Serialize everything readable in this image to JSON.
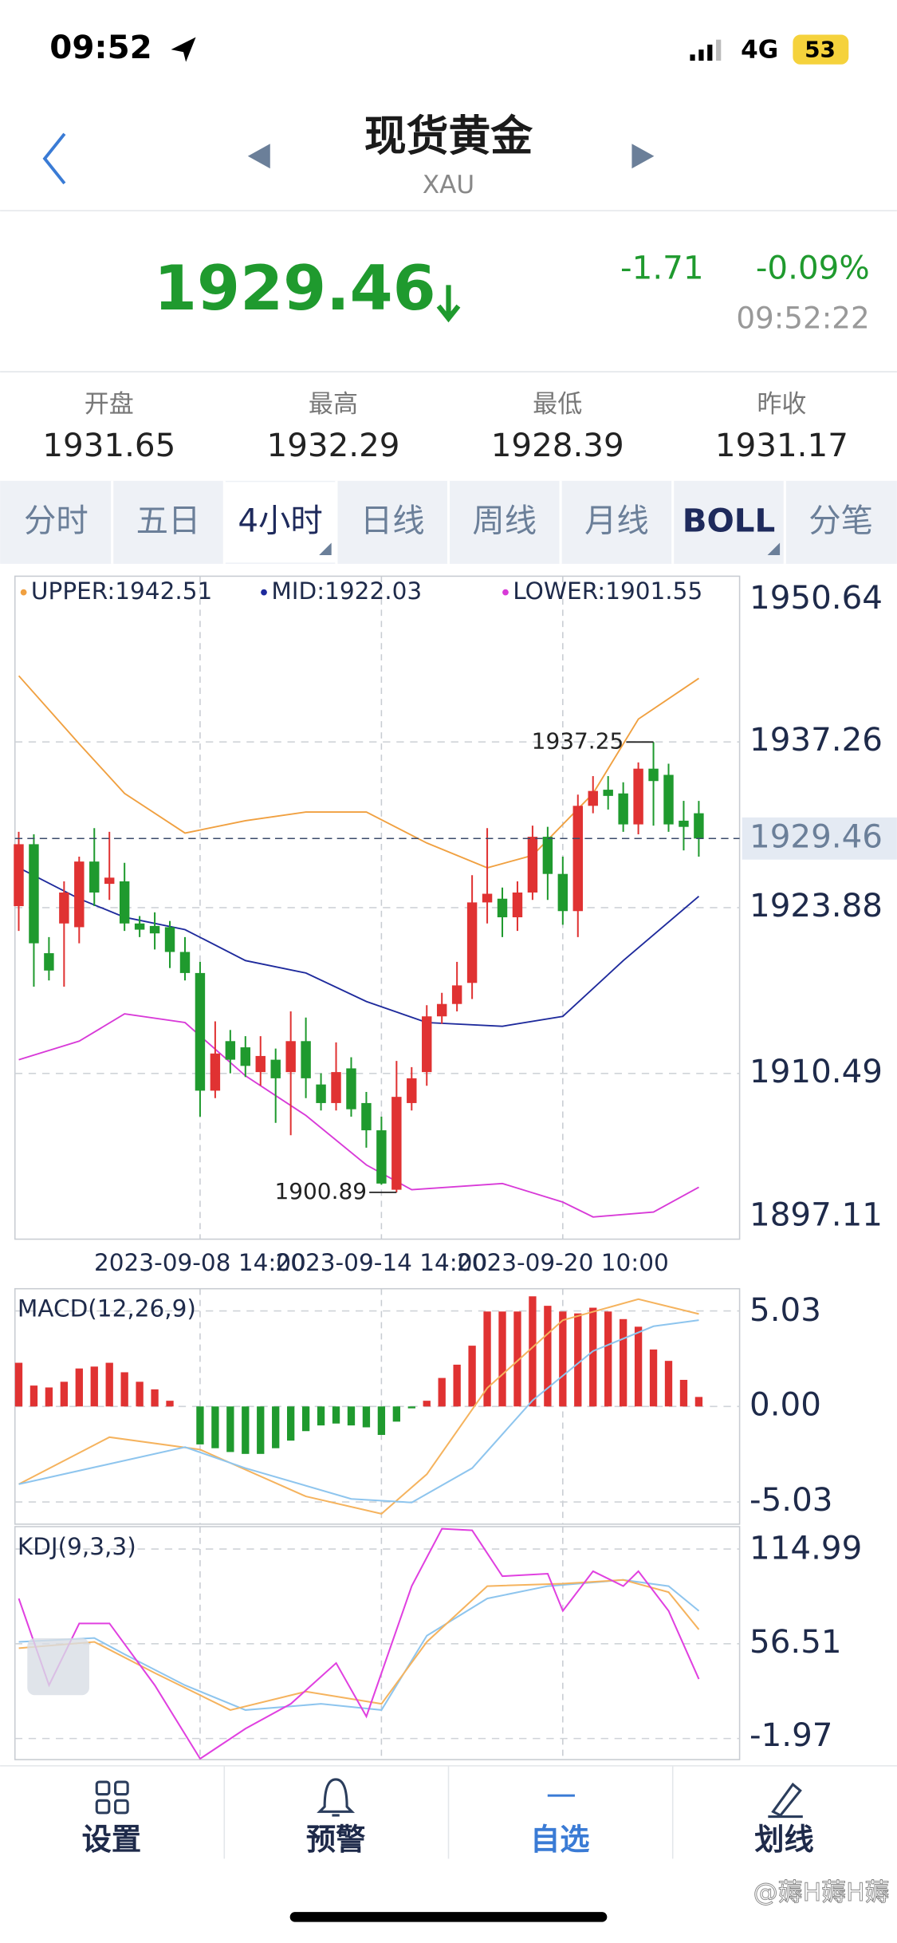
{
  "status": {
    "time": "09:52",
    "network": "4G",
    "battery": "53"
  },
  "header": {
    "title": "现货黄金",
    "subtitle": "XAU"
  },
  "quote": {
    "price": "1929.46",
    "change": "-1.71",
    "change_pct": "-0.09%",
    "time": "09:52:22"
  },
  "stats": [
    {
      "label": "开盘",
      "value": "1931.65"
    },
    {
      "label": "最高",
      "value": "1932.29"
    },
    {
      "label": "最低",
      "value": "1928.39"
    },
    {
      "label": "昨收",
      "value": "1931.17"
    }
  ],
  "tabs": [
    "分时",
    "五日",
    "4小时",
    "日线",
    "周线",
    "月线",
    "BOLL",
    "分笔"
  ],
  "active_tab": 2,
  "chart_data": [
    {
      "type": "candlestick",
      "up_color": "#e03232",
      "down_color": "#1f9a2e",
      "open": [
        1924.0,
        1929.0,
        1920.2,
        1922.6,
        1922.3,
        1927.6,
        1925.8,
        1926.0,
        1922.6,
        1922.4,
        1922.3,
        1920.3,
        1918.6,
        1909.1,
        1913.1,
        1912.6,
        1910.6,
        1911.6,
        1910.6,
        1913.1,
        1909.6,
        1908.1,
        1910.9,
        1908.1,
        1905.9,
        1901.1,
        1908.1,
        1910.6,
        1915.1,
        1916.1,
        1917.8,
        1924.3,
        1924.6,
        1923.1,
        1925.1,
        1929.6,
        1926.6,
        1923.6,
        1932.1,
        1933.4,
        1933.1,
        1930.6,
        1935.1,
        1934.6,
        1930.9,
        1931.5
      ],
      "high": [
        1930.0,
        1929.8,
        1921.5,
        1926.0,
        1928.0,
        1930.3,
        1930.0,
        1927.5,
        1923.2,
        1923.5,
        1922.8,
        1921.5,
        1919.5,
        1914.7,
        1914.0,
        1913.5,
        1913.5,
        1912.5,
        1915.5,
        1915.0,
        1910.5,
        1913.0,
        1911.8,
        1909.0,
        1907.0,
        1911.5,
        1911.0,
        1916.0,
        1917.0,
        1919.5,
        1926.5,
        1930.3,
        1925.5,
        1926.0,
        1930.5,
        1930.4,
        1928.0,
        1933.0,
        1934.5,
        1934.5,
        1934.0,
        1935.6,
        1937.25,
        1935.5,
        1932.5,
        1932.5
      ],
      "low": [
        1922.0,
        1917.5,
        1918.0,
        1917.5,
        1921.0,
        1924.0,
        1924.5,
        1922.0,
        1921.5,
        1920.5,
        1919.0,
        1918.0,
        1907.0,
        1908.5,
        1910.5,
        1910.2,
        1909.5,
        1906.5,
        1905.5,
        1908.5,
        1907.5,
        1907.5,
        1907.0,
        1904.5,
        1901.5,
        1900.89,
        1907.5,
        1909.5,
        1914.5,
        1915.5,
        1916.5,
        1922.6,
        1921.5,
        1922.0,
        1924.5,
        1924.5,
        1922.5,
        1921.5,
        1931.5,
        1931.8,
        1930.0,
        1929.8,
        1930.5,
        1930.0,
        1928.5,
        1928.0
      ],
      "close": [
        1929.0,
        1921.0,
        1918.8,
        1925.1,
        1927.6,
        1925.1,
        1926.3,
        1922.6,
        1922.1,
        1921.8,
        1920.3,
        1918.6,
        1909.1,
        1912.1,
        1911.6,
        1911.1,
        1911.9,
        1910.1,
        1913.1,
        1910.1,
        1908.1,
        1910.6,
        1907.6,
        1905.9,
        1901.6,
        1908.6,
        1910.1,
        1915.1,
        1916.1,
        1917.6,
        1924.3,
        1925.0,
        1923.1,
        1925.1,
        1929.6,
        1926.6,
        1923.6,
        1932.1,
        1933.3,
        1932.9,
        1930.6,
        1935.1,
        1934.1,
        1930.6,
        1930.4,
        1929.46
      ],
      "bands": [
        {
          "name": "UPPER:1942.51",
          "color": "#f0a040",
          "x": [
            0,
            4,
            7,
            11,
            15,
            19,
            23,
            27,
            31,
            34,
            38,
            41,
            45
          ],
          "values": [
            1942.6,
            1937.1,
            1933.1,
            1929.9,
            1930.9,
            1931.6,
            1931.6,
            1929.1,
            1927.1,
            1928.1,
            1933.1,
            1939.1,
            1942.4
          ]
        },
        {
          "name": "MID:1922.03",
          "color": "#1e2a9c",
          "x": [
            0,
            4,
            7,
            11,
            15,
            19,
            23,
            27,
            32,
            36,
            40,
            45
          ],
          "values": [
            1927.1,
            1924.6,
            1923.1,
            1922.1,
            1919.6,
            1918.6,
            1916.3,
            1914.6,
            1914.3,
            1915.1,
            1919.6,
            1924.8
          ]
        },
        {
          "name": "LOWER:1901.55",
          "color": "#d83ad8",
          "x": [
            0,
            4,
            7,
            11,
            15,
            19,
            23,
            26,
            32,
            36,
            38,
            42,
            45
          ],
          "values": [
            1911.6,
            1913.1,
            1915.3,
            1914.6,
            1910.3,
            1907.1,
            1903.1,
            1901.1,
            1901.6,
            1900.1,
            1898.9,
            1899.3,
            1901.3
          ]
        }
      ],
      "last_price": 1929.46,
      "annotations": [
        {
          "x": 42,
          "value": 1937.25
        },
        {
          "x": 25,
          "value": 1900.89
        }
      ],
      "xlim": [
        -0.25,
        47.7
      ],
      "xticks": [
        {
          "value": 12,
          "label": "2023-09-08 14:00"
        },
        {
          "value": 24,
          "label": "2023-09-14 14:00"
        },
        {
          "value": 36,
          "label": "2023-09-20 10:00"
        }
      ],
      "ylim": [
        1897.11,
        1950.64
      ],
      "yticks": [
        1950.64,
        1937.26,
        1923.88,
        1910.49,
        1897.11
      ],
      "grid": true
    },
    {
      "type": "macd",
      "title": "MACD(12,26,9)",
      "up_color": "#e03232",
      "down_color": "#1f9a2e",
      "values": [
        2.3,
        1.1,
        1.0,
        1.3,
        2.0,
        2.1,
        2.3,
        1.8,
        1.3,
        0.9,
        0.3,
        0,
        -2.0,
        -2.2,
        -2.4,
        -2.5,
        -2.5,
        -2.2,
        -1.8,
        -1.3,
        -1.0,
        -0.9,
        -1.0,
        -1.1,
        -1.5,
        -0.8,
        -0.1,
        0.3,
        1.5,
        2.2,
        3.2,
        5.0,
        5.0,
        5.0,
        5.8,
        5.3,
        5.0,
        4.9,
        5.2,
        5.0,
        4.6,
        4.2,
        3.0,
        2.4,
        1.4,
        0.5
      ],
      "series": [
        {
          "color": "#f5b35e",
          "x": [
            0,
            6,
            12,
            19,
            24,
            27,
            31,
            36,
            41,
            45
          ],
          "values": [
            -4.09,
            -1.62,
            -2.27,
            -4.74,
            -5.65,
            -3.57,
            0.97,
            4.54,
            5.65,
            4.87
          ]
        },
        {
          "color": "#8ec5ee",
          "x": [
            0,
            11,
            15,
            22,
            26,
            30,
            34,
            38,
            42,
            45
          ],
          "values": [
            -4.09,
            -2.14,
            -3.25,
            -4.87,
            -5.06,
            -3.25,
            0.32,
            2.92,
            4.22,
            4.54
          ]
        }
      ],
      "ylim": [
        -6.2,
        6.2
      ],
      "yticks": [
        5.03,
        {
          "value": 0,
          "label": "0.00"
        },
        -5.03
      ]
    },
    {
      "type": "line",
      "title": "KDJ(9,3,3)",
      "series": [
        {
          "color": "#8ec5ee",
          "x": [
            0,
            5,
            7,
            11,
            15,
            20,
            24,
            27,
            31,
            35,
            40,
            43,
            45
          ],
          "values": [
            57.7,
            60.0,
            50.0,
            30.9,
            15.6,
            19.4,
            15.6,
            61.5,
            84.4,
            92.1,
            95.9,
            92.1,
            76.8
          ]
        },
        {
          "color": "#f5b35e",
          "x": [
            0,
            5,
            9,
            14,
            19,
            24,
            27,
            31,
            36,
            40,
            43,
            45
          ],
          "values": [
            53.8,
            57.7,
            38.5,
            15.6,
            27.0,
            19.4,
            57.7,
            92.1,
            93.6,
            95.9,
            88.3,
            65.3
          ]
        },
        {
          "color": "#e040e0",
          "x": [
            0,
            2,
            4,
            6,
            9,
            12,
            15,
            18,
            21,
            23,
            26,
            28,
            30,
            32,
            35,
            36,
            38,
            40,
            41,
            43,
            45
          ],
          "values": [
            84.4,
            30.9,
            69.1,
            69.1,
            30.9,
            -14.5,
            4.1,
            19.4,
            44.6,
            11.6,
            92.1,
            127.5,
            126.5,
            98.2,
            99.7,
            76.8,
            101.3,
            92.1,
            101.3,
            76.8,
            34.7
          ]
        }
      ],
      "ylim": [
        -15,
        128.8
      ],
      "yticks": [
        114.99,
        56.51,
        -1.97
      ]
    }
  ],
  "nav": [
    {
      "label": "设置"
    },
    {
      "label": "预警"
    },
    {
      "label": "自选"
    },
    {
      "label": "划线"
    }
  ],
  "watermark": "@薅H薅H薅"
}
